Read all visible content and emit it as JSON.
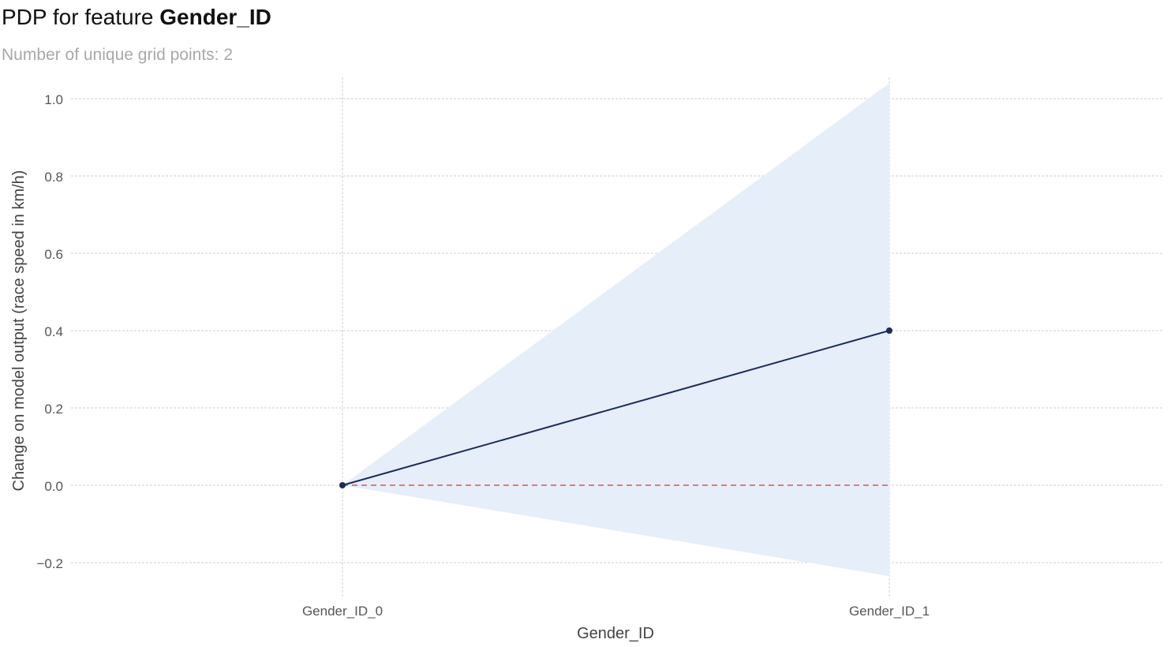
{
  "title": {
    "prefix": "PDP for feature",
    "feature": "Gender_ID"
  },
  "subtitle": "Number of unique grid points: 2",
  "chart_data": {
    "type": "line",
    "title": "PDP for feature Gender_ID",
    "subtitle": "Number of unique grid points: 2",
    "xlabel": "Gender_ID",
    "ylabel": "Change on model output (race speed in km/h)",
    "categories": [
      "Gender_ID_0",
      "Gender_ID_1"
    ],
    "series": [
      {
        "values": [
          0.0,
          0.4
        ],
        "color": "#1a2d5a"
      }
    ],
    "confidence_band": {
      "upper": [
        0.0,
        1.04
      ],
      "lower": [
        0.0,
        -0.235
      ],
      "color": "#e6eef9"
    },
    "reference_line": {
      "y": 0.0,
      "style": "dashed",
      "color": "#e07a7a"
    },
    "yticks": [
      -0.2,
      0.0,
      0.2,
      0.4,
      0.6,
      0.8,
      1.0
    ],
    "ytick_labels": [
      "−0.2",
      "0.0",
      "0.2",
      "0.4",
      "0.6",
      "0.8",
      "1.0"
    ],
    "ylim": [
      -0.3,
      1.05
    ],
    "grid": true,
    "legend": "none"
  }
}
